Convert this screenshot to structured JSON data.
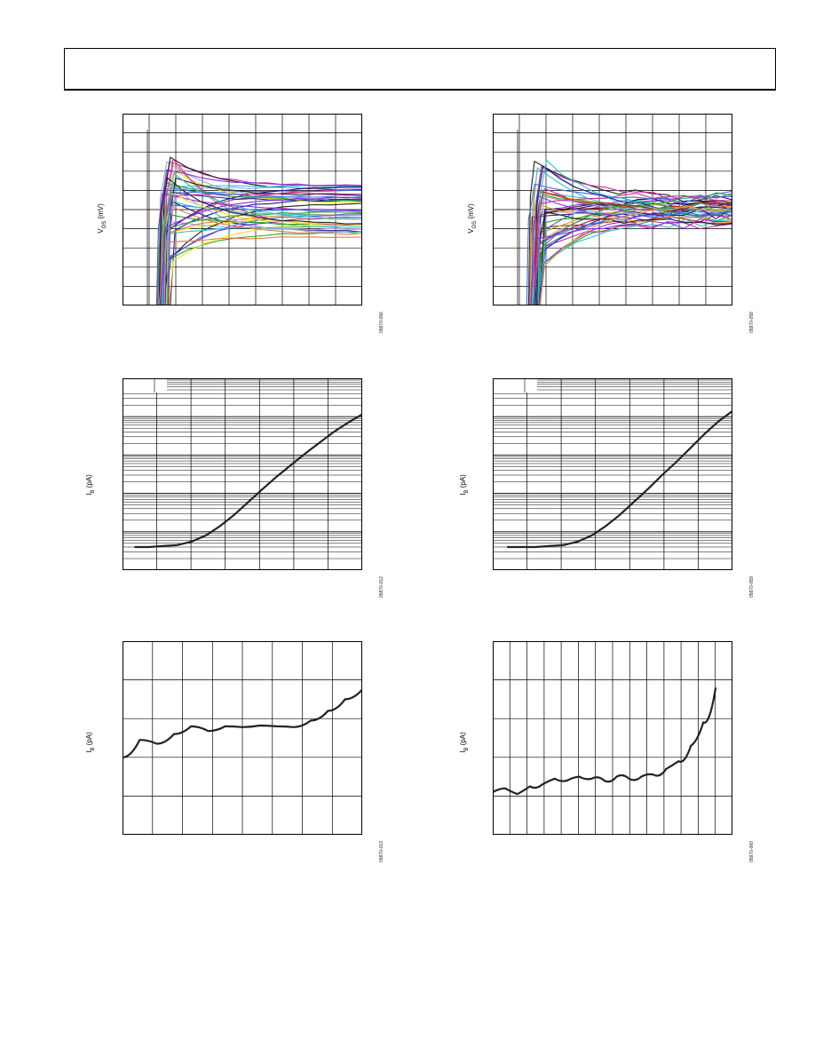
{
  "plots": [
    {
      "id": "vos-left",
      "ylabel_main": "V",
      "ylabel_sub": "OS",
      "ylabel_unit": " (mV)",
      "fig_id": "05870-056",
      "chart_data": {
        "type": "line",
        "title": "",
        "xlabel": "",
        "ylabel": "VOS (mV)",
        "grid": true,
        "x_divisions": 9,
        "y_divisions": 10,
        "series_count": 40,
        "colors": [
          "#1b1b8f",
          "#9aa6e6",
          "#f0e020",
          "#2aa02a",
          "#c8329a",
          "#202020",
          "#3a6ae0",
          "#30c0c0",
          "#e08040",
          "#8a2be2"
        ]
      }
    },
    {
      "id": "vos-right",
      "ylabel_main": "V",
      "ylabel_sub": "OS",
      "ylabel_unit": " (mV)",
      "fig_id": "05870-058",
      "chart_data": {
        "type": "line",
        "title": "",
        "xlabel": "",
        "ylabel": "VOS (mV)",
        "grid": true,
        "x_divisions": 9,
        "y_divisions": 10,
        "series_count": 40,
        "colors": [
          "#1b1b8f",
          "#9aa6e6",
          "#c02020",
          "#2aa02a",
          "#c8329a",
          "#202020",
          "#3a6ae0",
          "#30c0c0",
          "#e0a020",
          "#8a2be2"
        ]
      }
    },
    {
      "id": "ib-temp-left",
      "ylabel_main": "I",
      "ylabel_sub": "B",
      "ylabel_unit": " (pA)",
      "fig_id": "05870-012",
      "chart_data": {
        "type": "line",
        "scale": "log",
        "title": "",
        "xlabel": "",
        "ylabel": "IB (pA)",
        "grid": true,
        "x_divisions": 7,
        "decades": 5,
        "series": [
          {
            "values": [
              0.08,
              0.08,
              0.085,
              0.09,
              0.11,
              0.16,
              0.28,
              0.55,
              1.2,
              2.6,
              5.5,
              11,
              22,
              42,
              80,
              140,
              230
            ]
          }
        ]
      }
    },
    {
      "id": "ib-temp-right",
      "ylabel_main": "I",
      "ylabel_sub": "B",
      "ylabel_unit": " (pA)",
      "fig_id": "05870-059",
      "chart_data": {
        "type": "line",
        "scale": "log",
        "title": "",
        "xlabel": "",
        "ylabel": "IB (pA)",
        "grid": true,
        "x_divisions": 7,
        "decades": 5,
        "series": [
          {
            "values": [
              0.08,
              0.08,
              0.08,
              0.085,
              0.09,
              0.11,
              0.16,
              0.28,
              0.55,
              1.2,
              2.6,
              6,
              13,
              30,
              70,
              150,
              280
            ]
          }
        ]
      }
    },
    {
      "id": "ib-vcm-left",
      "ylabel_main": "I",
      "ylabel_sub": "B",
      "ylabel_unit": " (pA)",
      "fig_id": "05870-013",
      "chart_data": {
        "type": "line",
        "title": "",
        "xlabel": "",
        "ylabel": "IB (pA)",
        "grid": true,
        "x_divisions": 8,
        "y_divisions": 5,
        "series": [
          {
            "values": [
              2.0,
              2.45,
              2.35,
              2.6,
              2.8,
              2.68,
              2.8,
              2.78,
              2.82,
              2.8,
              2.78,
              2.95,
              3.2,
              3.5,
              3.75
            ]
          }
        ]
      }
    },
    {
      "id": "ib-vcm-right",
      "ylabel_main": "I",
      "ylabel_sub": "B",
      "ylabel_unit": " (pA)",
      "fig_id": "05870-060",
      "chart_data": {
        "type": "line",
        "title": "",
        "xlabel": "",
        "ylabel": "IB (pA)",
        "grid": true,
        "x_divisions": 14,
        "y_divisions": 5,
        "series": [
          {
            "values": [
              1.1,
              1.2,
              1.05,
              1.25,
              1.3,
              1.45,
              1.4,
              1.5,
              1.45,
              1.4,
              1.5,
              1.45,
              1.5,
              1.55,
              1.7,
              1.9,
              2.3,
              2.9,
              3.8
            ]
          }
        ]
      }
    }
  ]
}
